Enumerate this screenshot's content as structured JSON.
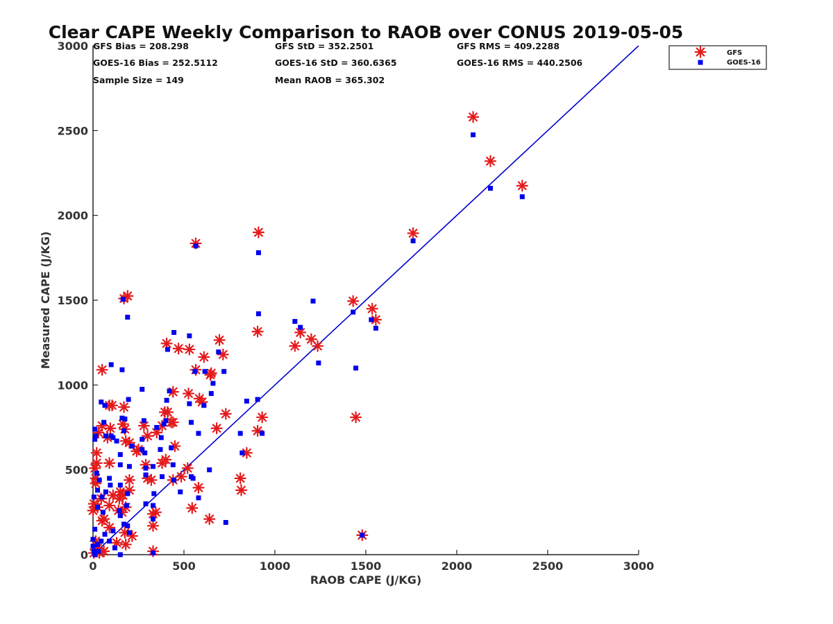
{
  "chart_data": {
    "type": "scatter",
    "title": "Clear CAPE Weekly Comparison to RAOB over CONUS 2019-05-05",
    "xlabel": "RAOB CAPE (J/KG)",
    "ylabel": "Measured CAPE (J/KG)",
    "xlim": [
      0,
      3000
    ],
    "ylim": [
      0,
      3000
    ],
    "xticks": [
      0,
      500,
      1000,
      1500,
      2000,
      2500,
      3000
    ],
    "yticks": [
      0,
      500,
      1000,
      1500,
      2000,
      2500,
      3000
    ],
    "grid": false,
    "legend_position": "top-right",
    "stats": [
      "GFS Bias = 208.298",
      "GFS StD = 352.2501",
      "GFS RMS = 409.2288",
      "GOES-16 Bias = 252.5112",
      "GOES-16 StD = 360.6365",
      "GOES-16 RMS = 440.2506",
      "Sample Size = 149",
      "Mean RAOB = 365.302"
    ],
    "reference_line": {
      "x": [
        0,
        3000
      ],
      "y": [
        0,
        3000
      ],
      "color": "#0000cc"
    },
    "series": [
      {
        "name": "GFS",
        "marker": "asterisk",
        "color": "#e41a1c",
        "points": [
          [
            2090,
            2580
          ],
          [
            2185,
            2320
          ],
          [
            2360,
            2175
          ],
          [
            1760,
            1895
          ],
          [
            910,
            1900
          ],
          [
            565,
            1835
          ],
          [
            170,
            1510
          ],
          [
            190,
            1525
          ],
          [
            1430,
            1495
          ],
          [
            1535,
            1450
          ],
          [
            1555,
            1385
          ],
          [
            1110,
            1230
          ],
          [
            1140,
            1310
          ],
          [
            1200,
            1270
          ],
          [
            1235,
            1230
          ],
          [
            905,
            1315
          ],
          [
            695,
            1265
          ],
          [
            715,
            1180
          ],
          [
            405,
            1245
          ],
          [
            470,
            1215
          ],
          [
            530,
            1210
          ],
          [
            565,
            1090
          ],
          [
            645,
            1060
          ],
          [
            50,
            1090
          ],
          [
            1445,
            810
          ],
          [
            930,
            810
          ],
          [
            905,
            730
          ],
          [
            845,
            600
          ],
          [
            810,
            450
          ],
          [
            815,
            380
          ],
          [
            640,
            210
          ],
          [
            545,
            275
          ],
          [
            580,
            395
          ],
          [
            650,
            1070
          ],
          [
            610,
            1165
          ],
          [
            585,
            920
          ],
          [
            600,
            900
          ],
          [
            525,
            950
          ],
          [
            440,
            960
          ],
          [
            395,
            840
          ],
          [
            410,
            840
          ],
          [
            430,
            780
          ],
          [
            380,
            760
          ],
          [
            350,
            720
          ],
          [
            280,
            760
          ],
          [
            300,
            700
          ],
          [
            290,
            530
          ],
          [
            300,
            450
          ],
          [
            320,
            440
          ],
          [
            240,
            610
          ],
          [
            200,
            660
          ],
          [
            180,
            670
          ],
          [
            175,
            740
          ],
          [
            165,
            770
          ],
          [
            170,
            870
          ],
          [
            105,
            880
          ],
          [
            90,
            880
          ],
          [
            95,
            745
          ],
          [
            50,
            760
          ],
          [
            80,
            690
          ],
          [
            30,
            720
          ],
          [
            20,
            600
          ],
          [
            20,
            540
          ],
          [
            10,
            510
          ],
          [
            15,
            450
          ],
          [
            15,
            420
          ],
          [
            5,
            300
          ],
          [
            0,
            260
          ],
          [
            25,
            280
          ],
          [
            45,
            330
          ],
          [
            90,
            540
          ],
          [
            90,
            290
          ],
          [
            60,
            210
          ],
          [
            150,
            370
          ],
          [
            145,
            330
          ],
          [
            165,
            350
          ],
          [
            180,
            280
          ],
          [
            200,
            440
          ],
          [
            200,
            380
          ],
          [
            215,
            110
          ],
          [
            175,
            130
          ],
          [
            180,
            60
          ],
          [
            160,
            250
          ],
          [
            140,
            260
          ],
          [
            110,
            350
          ],
          [
            90,
            160
          ],
          [
            130,
            70
          ],
          [
            60,
            20
          ],
          [
            35,
            10
          ],
          [
            25,
            40
          ],
          [
            15,
            80
          ],
          [
            5,
            10
          ],
          [
            330,
            20
          ],
          [
            330,
            240
          ],
          [
            330,
            170
          ],
          [
            345,
            250
          ],
          [
            250,
            620
          ],
          [
            450,
            640
          ],
          [
            440,
            440
          ],
          [
            485,
            460
          ],
          [
            520,
            510
          ],
          [
            380,
            540
          ],
          [
            400,
            560
          ],
          [
            440,
            780
          ],
          [
            680,
            745
          ],
          [
            730,
            830
          ],
          [
            1480,
            115
          ],
          [
            50,
            200
          ]
        ]
      },
      {
        "name": "GOES-16",
        "marker": "square",
        "color": "#0000ee",
        "points": [
          [
            2090,
            2475
          ],
          [
            2185,
            2160
          ],
          [
            2360,
            2110
          ],
          [
            1760,
            1850
          ],
          [
            910,
            1780
          ],
          [
            565,
            1820
          ],
          [
            165,
            1505
          ],
          [
            190,
            1400
          ],
          [
            1430,
            1430
          ],
          [
            1530,
            1385
          ],
          [
            1555,
            1335
          ],
          [
            1210,
            1495
          ],
          [
            1110,
            1375
          ],
          [
            1140,
            1340
          ],
          [
            1240,
            1130
          ],
          [
            910,
            1420
          ],
          [
            530,
            1290
          ],
          [
            445,
            1310
          ],
          [
            690,
            1195
          ],
          [
            720,
            1080
          ],
          [
            410,
            1210
          ],
          [
            560,
            1080
          ],
          [
            660,
            1010
          ],
          [
            615,
            1080
          ],
          [
            1445,
            1100
          ],
          [
            905,
            915
          ],
          [
            930,
            715
          ],
          [
            845,
            905
          ],
          [
            810,
            715
          ],
          [
            820,
            600
          ],
          [
            730,
            190
          ],
          [
            640,
            500
          ],
          [
            580,
            335
          ],
          [
            580,
            715
          ],
          [
            650,
            950
          ],
          [
            610,
            880
          ],
          [
            530,
            890
          ],
          [
            540,
            780
          ],
          [
            420,
            965
          ],
          [
            405,
            910
          ],
          [
            400,
            790
          ],
          [
            390,
            770
          ],
          [
            375,
            690
          ],
          [
            350,
            750
          ],
          [
            280,
            790
          ],
          [
            270,
            975
          ],
          [
            195,
            915
          ],
          [
            160,
            1090
          ],
          [
            100,
            1120
          ],
          [
            65,
            880
          ],
          [
            45,
            900
          ],
          [
            60,
            780
          ],
          [
            70,
            700
          ],
          [
            100,
            700
          ],
          [
            110,
            690
          ],
          [
            130,
            670
          ],
          [
            170,
            730
          ],
          [
            175,
            800
          ],
          [
            160,
            805
          ],
          [
            150,
            590
          ],
          [
            150,
            530
          ],
          [
            200,
            520
          ],
          [
            215,
            640
          ],
          [
            270,
            680
          ],
          [
            270,
            620
          ],
          [
            285,
            600
          ],
          [
            290,
            510
          ],
          [
            290,
            470
          ],
          [
            330,
            520
          ],
          [
            290,
            300
          ],
          [
            330,
            290
          ],
          [
            330,
            210
          ],
          [
            335,
            360
          ],
          [
            370,
            620
          ],
          [
            380,
            460
          ],
          [
            440,
            530
          ],
          [
            480,
            370
          ],
          [
            540,
            460
          ],
          [
            550,
            450
          ],
          [
            445,
            440
          ],
          [
            430,
            630
          ],
          [
            190,
            360
          ],
          [
            185,
            290
          ],
          [
            190,
            170
          ],
          [
            170,
            180
          ],
          [
            150,
            230
          ],
          [
            145,
            260
          ],
          [
            150,
            410
          ],
          [
            95,
            410
          ],
          [
            90,
            450
          ],
          [
            70,
            370
          ],
          [
            50,
            340
          ],
          [
            55,
            250
          ],
          [
            35,
            440
          ],
          [
            25,
            380
          ],
          [
            25,
            280
          ],
          [
            20,
            480
          ],
          [
            15,
            700
          ],
          [
            10,
            740
          ],
          [
            10,
            680
          ],
          [
            5,
            340
          ],
          [
            0,
            90
          ],
          [
            0,
            50
          ],
          [
            5,
            20
          ],
          [
            10,
            0
          ],
          [
            25,
            60
          ],
          [
            45,
            80
          ],
          [
            65,
            120
          ],
          [
            90,
            80
          ],
          [
            110,
            140
          ],
          [
            120,
            40
          ],
          [
            150,
            0
          ],
          [
            330,
            10
          ],
          [
            30,
            20
          ],
          [
            1480,
            115
          ],
          [
            10,
            150
          ],
          [
            200,
            130
          ]
        ]
      }
    ]
  }
}
